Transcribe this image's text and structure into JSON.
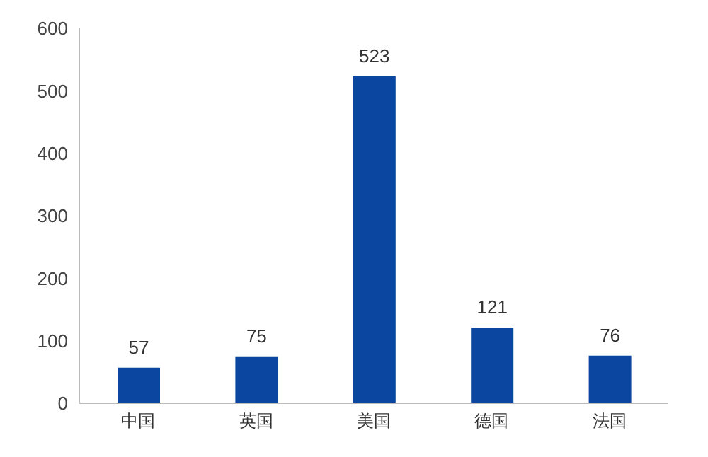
{
  "chart_data": {
    "type": "bar",
    "categories": [
      "中国",
      "英国",
      "美国",
      "德国",
      "法国"
    ],
    "values": [
      57,
      75,
      523,
      121,
      76
    ],
    "color": "#0b47a1",
    "ylim": [
      0,
      600
    ],
    "yticks": [
      0,
      100,
      200,
      300,
      400,
      500,
      600
    ],
    "data_labels": true
  }
}
